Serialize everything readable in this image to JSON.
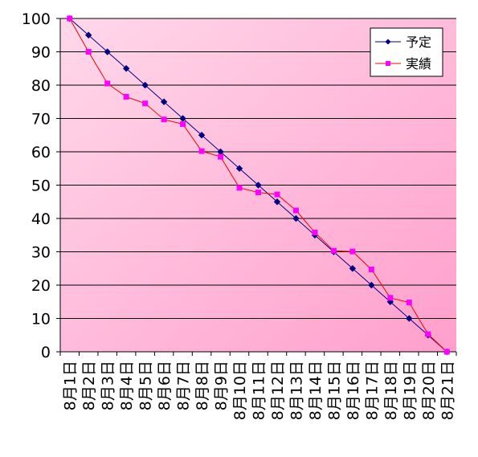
{
  "chart_data": {
    "type": "line",
    "title": "",
    "xlabel": "",
    "ylabel": "",
    "categories": [
      "8月1日",
      "8月2日",
      "8月3日",
      "8月4日",
      "8月5日",
      "8月6日",
      "8月7日",
      "8月8日",
      "8月9日",
      "8月10日",
      "8月11日",
      "8月12日",
      "8月13日",
      "8月14日",
      "8月15日",
      "8月16日",
      "8月17日",
      "8月18日",
      "8月19日",
      "8月20日",
      "8月21日"
    ],
    "ylim": [
      0,
      100
    ],
    "yticks": [
      "0",
      "10",
      "20",
      "30",
      "40",
      "50",
      "60",
      "70",
      "80",
      "90",
      "100"
    ],
    "grid": true,
    "legend_position": "top-right",
    "series": [
      {
        "name": "予定",
        "color": "#000080",
        "marker": "diamond",
        "values": [
          100,
          95,
          90,
          85,
          80,
          75,
          70,
          65,
          60,
          55,
          50,
          45,
          40,
          35,
          30,
          25,
          20,
          15,
          10,
          5,
          0
        ]
      },
      {
        "name": "実績",
        "color": "#ff00ff",
        "line_color": "#ff0000",
        "marker": "square",
        "values": [
          100,
          90,
          80.5,
          76.5,
          74.5,
          69.7,
          68.3,
          60.2,
          58.5,
          49.2,
          47.8,
          47.2,
          42.4,
          35.8,
          30.3,
          30.1,
          24.7,
          16.2,
          14.8,
          5.3,
          0
        ]
      }
    ],
    "background": {
      "gradient_start": "#ffd8ea",
      "gradient_end": "#ff9fcc"
    }
  }
}
